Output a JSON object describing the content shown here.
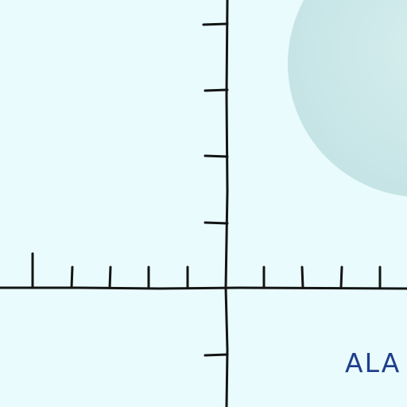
{
  "diagram": {
    "type": "coordinate-axes",
    "caption": "ALA",
    "colors": {
      "background": "#e9fbfc",
      "circle": "#c4e4e6",
      "axis": "#141414",
      "caption": "#1f3f8c"
    }
  }
}
